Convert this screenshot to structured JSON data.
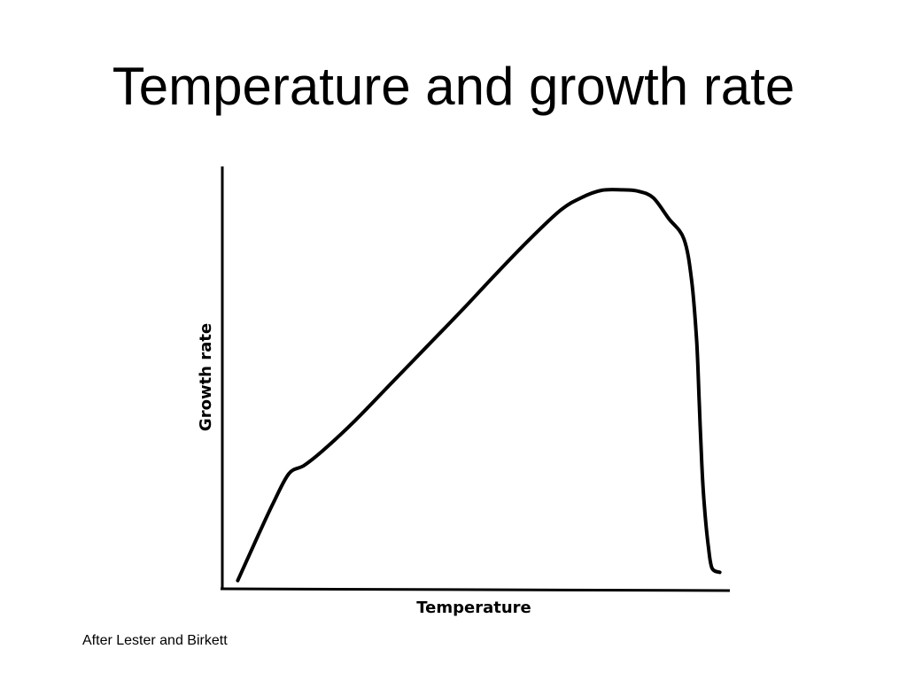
{
  "slide": {
    "title": "Temperature and growth rate",
    "source_note": "After Lester and Birkett"
  },
  "chart_data": {
    "type": "line",
    "xlabel": "Temperature",
    "ylabel": "Growth rate",
    "xlim": [
      0,
      100
    ],
    "ylim": [
      0,
      100
    ],
    "grid": false,
    "series": [
      {
        "x": [
          3,
          7,
          10,
          13,
          16,
          20,
          26,
          33,
          40,
          47,
          53,
          60,
          66,
          70,
          74,
          78,
          81,
          84,
          87,
          90,
          91.5,
          92.5,
          93,
          93.5,
          94,
          94.8,
          95.5,
          97
        ],
        "values": [
          2,
          13,
          21,
          28,
          30,
          34,
          41,
          50,
          59,
          68,
          76,
          85,
          92,
          95,
          96.8,
          96.9,
          96.6,
          95,
          90,
          85,
          75,
          60,
          45,
          30,
          20,
          10,
          5,
          4
        ]
      }
    ]
  }
}
